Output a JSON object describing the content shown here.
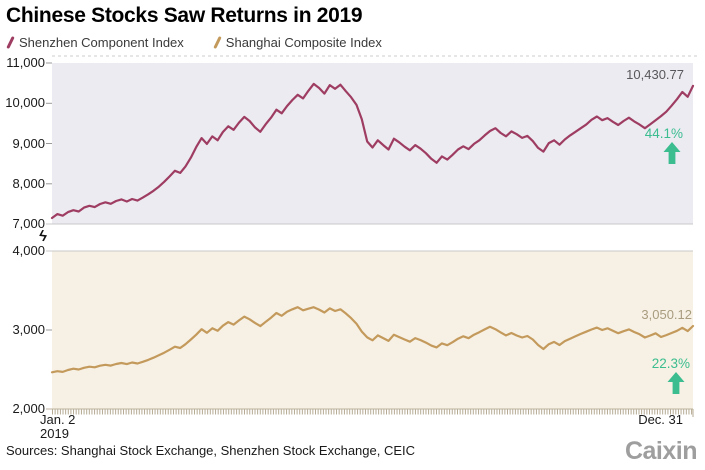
{
  "title": "Chinese Stocks Saw Returns in 2019",
  "legend": [
    {
      "label": "Shenzhen Component Index",
      "color": "#9e3d61"
    },
    {
      "label": "Shanghai Composite Index",
      "color": "#c49a5c"
    }
  ],
  "axis_break_symbol": "ϟ",
  "xaxis": {
    "start_line1": "Jan. 2",
    "start_line2": "2019",
    "end_label": "Dec. 31"
  },
  "footer": {
    "sources": "Sources: Shanghai Stock Exchange, Shenzhen Stock Exchange, CEIC",
    "brand": "Caixin"
  },
  "chart_data": [
    {
      "type": "line",
      "series_name": "Shenzhen Component Index",
      "color": "#9e3d61",
      "bg": "#ecebf2",
      "ylim": [
        7000,
        11000
      ],
      "yticks": [
        "11,000",
        "10,000",
        "9,000",
        "8,000",
        "7,000"
      ],
      "x_range": [
        "Jan. 2, 2019",
        "Dec. 31, 2019"
      ],
      "end_value_label": "10,430.77",
      "pct_change_label": "44.1%",
      "pct_color": "#3bbd8f",
      "values": [
        7149,
        7246,
        7205,
        7296,
        7342,
        7310,
        7408,
        7451,
        7419,
        7496,
        7538,
        7502,
        7572,
        7611,
        7560,
        7620,
        7581,
        7656,
        7739,
        7824,
        7926,
        8048,
        8180,
        8322,
        8270,
        8430,
        8650,
        8910,
        9134,
        8990,
        9176,
        9080,
        9286,
        9428,
        9340,
        9520,
        9660,
        9560,
        9400,
        9290,
        9480,
        9640,
        9840,
        9750,
        9930,
        10080,
        10210,
        10120,
        10310,
        10480,
        10380,
        10240,
        10450,
        10360,
        10460,
        10300,
        10150,
        9960,
        9600,
        9050,
        8900,
        9080,
        8960,
        8850,
        9120,
        9030,
        8920,
        8830,
        8960,
        8870,
        8760,
        8620,
        8520,
        8680,
        8600,
        8720,
        8850,
        8930,
        8860,
        8990,
        9080,
        9200,
        9310,
        9380,
        9260,
        9180,
        9300,
        9230,
        9140,
        9190,
        9060,
        8890,
        8800,
        9010,
        9080,
        8970,
        9100,
        9200,
        9290,
        9380,
        9470,
        9590,
        9670,
        9580,
        9630,
        9540,
        9460,
        9560,
        9640,
        9550,
        9470,
        9380,
        9480,
        9580,
        9680,
        9790,
        9940,
        10100,
        10280,
        10160,
        10430.77
      ]
    },
    {
      "type": "line",
      "series_name": "Shanghai Composite Index",
      "color": "#c49a5c",
      "bg": "#f7f1e5",
      "ylim": [
        2000,
        4000
      ],
      "yticks": [
        "4,000",
        "3,000",
        "2,000"
      ],
      "x_range": [
        "Jan. 2, 2019",
        "Dec. 31, 2019"
      ],
      "end_value_label": "3,050.12",
      "pct_change_label": "22.3%",
      "pct_color": "#3bbd8f",
      "values": [
        2465,
        2479,
        2470,
        2494,
        2510,
        2500,
        2522,
        2536,
        2528,
        2548,
        2560,
        2550,
        2570,
        2582,
        2568,
        2588,
        2576,
        2598,
        2622,
        2649,
        2680,
        2713,
        2750,
        2788,
        2772,
        2820,
        2880,
        2941,
        3010,
        2964,
        3022,
        2990,
        3054,
        3100,
        3068,
        3122,
        3170,
        3136,
        3090,
        3050,
        3104,
        3156,
        3215,
        3180,
        3232,
        3262,
        3288,
        3250,
        3270,
        3288,
        3258,
        3222,
        3274,
        3240,
        3262,
        3210,
        3150,
        3078,
        2980,
        2906,
        2870,
        2932,
        2898,
        2862,
        2940,
        2910,
        2880,
        2852,
        2898,
        2872,
        2840,
        2802,
        2780,
        2830,
        2808,
        2845,
        2890,
        2920,
        2896,
        2940,
        2972,
        3008,
        3040,
        3010,
        2970,
        2932,
        2962,
        2930,
        2905,
        2924,
        2880,
        2810,
        2760,
        2820,
        2850,
        2810,
        2860,
        2890,
        2920,
        2950,
        2978,
        3006,
        3030,
        3000,
        3022,
        2990,
        2960,
        2985,
        3008,
        2975,
        2945,
        2905,
        2930,
        2958,
        2912,
        2935,
        2962,
        2990,
        3028,
        2986,
        3050.12
      ]
    }
  ]
}
